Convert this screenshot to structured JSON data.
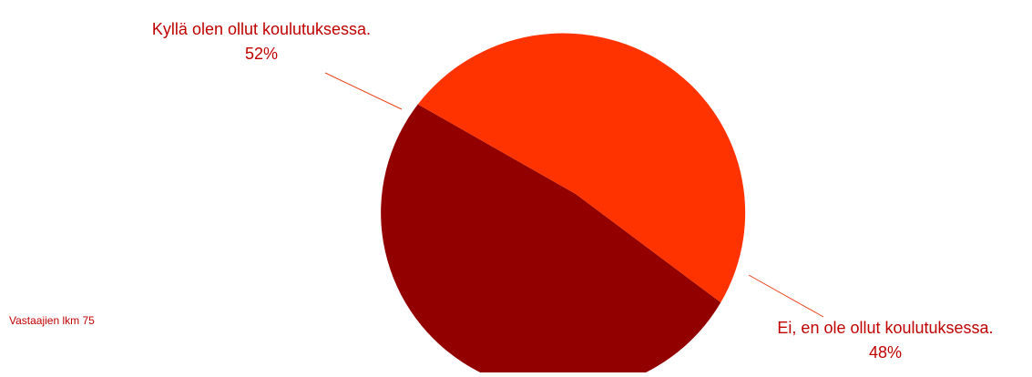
{
  "chart_data": {
    "type": "pie",
    "slices": [
      {
        "label_line1": "Kyllä olen ollut koulutuksessa.",
        "label_line2": "52%",
        "value": 52,
        "color": "#930000"
      },
      {
        "label_line1": "Ei, en ole ollut koulutuksessa.",
        "label_line2": "48%",
        "value": 48,
        "color": "#ff3300"
      }
    ],
    "label_color": "#c00000",
    "leader_color": "#e8431c"
  },
  "footnote": "Vastaajien lkm 75"
}
